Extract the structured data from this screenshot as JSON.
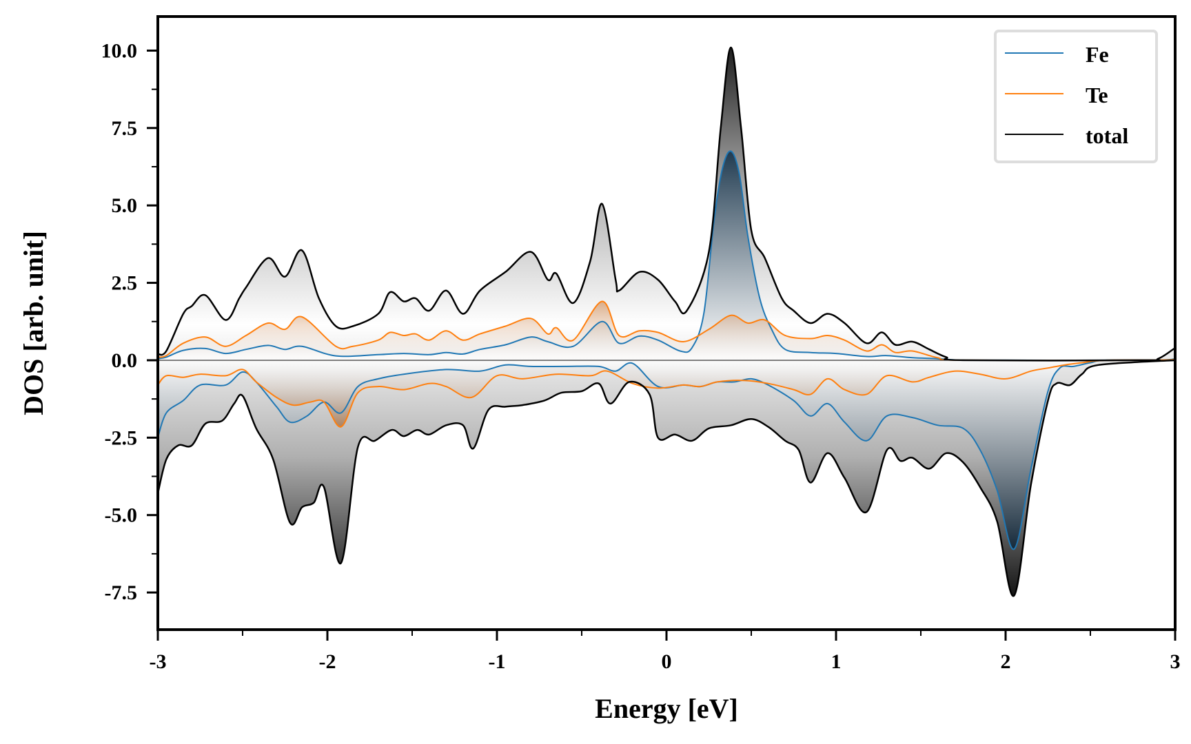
{
  "chart_data": {
    "type": "area",
    "title": "",
    "xlabel": "Energy [eV]",
    "ylabel": "DOS [arb. unit]",
    "xlim": [
      -3,
      3
    ],
    "ylim": [
      -8.7,
      11.1
    ],
    "xticks": [
      -3,
      -2,
      -1,
      0,
      1,
      2,
      3
    ],
    "xtick_labels": [
      "-3",
      "-2",
      "-1",
      "0",
      "1",
      "2",
      "3"
    ],
    "xminor_ticks": [
      -2.5,
      -1.5,
      -0.5,
      0.5,
      1.5,
      2.5
    ],
    "yticks": [
      -7.5,
      -5.0,
      -2.5,
      0.0,
      2.5,
      5.0,
      7.5,
      10.0
    ],
    "ytick_labels": [
      "-7.5",
      "-5.0",
      "-2.5",
      "0.0",
      "2.5",
      "5.0",
      "7.5",
      "10.0"
    ],
    "yminor_ticks": [
      -6.25,
      -3.75,
      -1.25,
      1.25,
      3.75,
      6.25,
      8.75
    ],
    "grid": false,
    "legend": {
      "position": "top-right",
      "entries": [
        "Fe",
        "Te",
        "total"
      ]
    },
    "series": [
      {
        "name": "Fe",
        "color": "#1f77b4",
        "spin_up": {
          "x": [
            -3.0,
            -2.95,
            -2.85,
            -2.72,
            -2.6,
            -2.48,
            -2.35,
            -2.25,
            -2.15,
            -1.95,
            -1.7,
            -1.55,
            -1.4,
            -1.3,
            -1.2,
            -1.1,
            -0.95,
            -0.8,
            -0.7,
            -0.55,
            -0.38,
            -0.28,
            -0.16,
            -0.05,
            0.08,
            0.15,
            0.22,
            0.28,
            0.33,
            0.38,
            0.43,
            0.48,
            0.55,
            0.62,
            0.7,
            0.85,
            1.0,
            1.18,
            1.3,
            1.45,
            1.6,
            1.75,
            2.0,
            2.85,
            3.0
          ],
          "y": [
            0.05,
            0.1,
            0.32,
            0.38,
            0.22,
            0.35,
            0.48,
            0.35,
            0.45,
            0.14,
            0.18,
            0.22,
            0.18,
            0.25,
            0.2,
            0.35,
            0.5,
            0.75,
            0.6,
            0.45,
            1.25,
            0.55,
            0.78,
            0.65,
            0.3,
            0.4,
            1.5,
            4.5,
            6.2,
            6.75,
            6.0,
            4.0,
            2.0,
            1.0,
            0.35,
            0.25,
            0.22,
            0.12,
            0.15,
            0.08,
            0.05,
            0.0,
            0.0,
            0.0,
            0.05
          ]
        },
        "spin_down": {
          "x": [
            -3.0,
            -2.95,
            -2.85,
            -2.75,
            -2.6,
            -2.5,
            -2.42,
            -2.3,
            -2.22,
            -2.12,
            -2.02,
            -1.92,
            -1.82,
            -1.7,
            -1.55,
            -1.3,
            -1.1,
            -0.95,
            -0.8,
            -0.6,
            -0.4,
            -0.3,
            -0.2,
            -0.05,
            0.1,
            0.2,
            0.3,
            0.4,
            0.5,
            0.6,
            0.75,
            0.85,
            0.95,
            1.05,
            1.18,
            1.3,
            1.45,
            1.6,
            1.75,
            1.85,
            1.95,
            2.05,
            2.15,
            2.25,
            2.32,
            2.4,
            2.5,
            2.6,
            3.0
          ],
          "y": [
            -2.5,
            -1.7,
            -1.3,
            -0.8,
            -0.8,
            -0.38,
            -0.7,
            -1.5,
            -2.0,
            -1.8,
            -1.35,
            -1.7,
            -0.85,
            -0.6,
            -0.45,
            -0.3,
            -0.35,
            -0.15,
            -0.2,
            -0.2,
            -0.2,
            -0.35,
            -0.1,
            -0.85,
            -0.8,
            -0.85,
            -0.7,
            -0.7,
            -0.6,
            -0.8,
            -1.3,
            -1.8,
            -1.4,
            -2.0,
            -2.6,
            -1.8,
            -1.85,
            -2.1,
            -2.2,
            -2.9,
            -4.2,
            -6.1,
            -3.5,
            -1.0,
            -0.25,
            -0.2,
            -0.08,
            0.0,
            0.0
          ]
        }
      },
      {
        "name": "Te",
        "color": "#ff7f0e",
        "spin_up": {
          "x": [
            -3.0,
            -2.95,
            -2.85,
            -2.72,
            -2.6,
            -2.48,
            -2.35,
            -2.25,
            -2.15,
            -1.95,
            -1.85,
            -1.7,
            -1.63,
            -1.55,
            -1.48,
            -1.4,
            -1.3,
            -1.2,
            -1.1,
            -0.95,
            -0.8,
            -0.7,
            -0.65,
            -0.55,
            -0.38,
            -0.28,
            -0.16,
            -0.05,
            0.1,
            0.25,
            0.38,
            0.48,
            0.58,
            0.7,
            0.85,
            0.95,
            1.05,
            1.18,
            1.27,
            1.35,
            1.45,
            1.6,
            1.75,
            2.85,
            3.0
          ],
          "y": [
            0.1,
            0.15,
            0.55,
            0.75,
            0.45,
            0.8,
            1.2,
            1.0,
            1.4,
            0.45,
            0.45,
            0.65,
            0.9,
            0.8,
            0.85,
            0.65,
            0.95,
            0.65,
            0.85,
            1.1,
            1.35,
            0.85,
            1.05,
            0.65,
            1.9,
            0.8,
            0.95,
            0.9,
            0.6,
            1.0,
            1.45,
            1.2,
            1.3,
            0.8,
            0.7,
            0.8,
            0.65,
            0.3,
            0.5,
            0.25,
            0.3,
            0.08,
            0.0,
            0.0,
            0.05
          ]
        },
        "spin_down": {
          "x": [
            -3.0,
            -2.95,
            -2.85,
            -2.75,
            -2.6,
            -2.5,
            -2.42,
            -2.3,
            -2.2,
            -2.1,
            -2.02,
            -1.92,
            -1.82,
            -1.7,
            -1.55,
            -1.4,
            -1.3,
            -1.15,
            -1.0,
            -0.85,
            -0.65,
            -0.45,
            -0.35,
            -0.2,
            -0.05,
            0.1,
            0.2,
            0.3,
            0.45,
            0.6,
            0.75,
            0.85,
            0.95,
            1.05,
            1.18,
            1.3,
            1.45,
            1.55,
            1.7,
            1.85,
            2.0,
            2.15,
            2.25,
            2.35,
            2.45,
            2.6,
            3.0
          ],
          "y": [
            -0.8,
            -0.5,
            -0.55,
            -0.45,
            -0.5,
            -0.3,
            -0.7,
            -1.2,
            -1.45,
            -1.35,
            -1.35,
            -2.15,
            -1.05,
            -0.85,
            -0.95,
            -0.75,
            -0.85,
            -1.2,
            -0.5,
            -0.6,
            -0.45,
            -0.5,
            -0.35,
            -0.75,
            -0.9,
            -0.8,
            -0.85,
            -0.7,
            -0.65,
            -0.75,
            -0.95,
            -1.1,
            -0.6,
            -0.95,
            -1.1,
            -0.5,
            -0.7,
            -0.55,
            -0.35,
            -0.45,
            -0.6,
            -0.35,
            -0.25,
            -0.15,
            -0.08,
            0.0,
            0.0
          ]
        }
      },
      {
        "name": "total",
        "color": "#000000",
        "spin_up": {
          "x": [
            -3.0,
            -2.95,
            -2.85,
            -2.8,
            -2.72,
            -2.6,
            -2.52,
            -2.48,
            -2.35,
            -2.25,
            -2.15,
            -2.05,
            -1.95,
            -1.85,
            -1.7,
            -1.63,
            -1.55,
            -1.48,
            -1.4,
            -1.3,
            -1.2,
            -1.1,
            -0.95,
            -0.8,
            -0.7,
            -0.65,
            -0.55,
            -0.45,
            -0.38,
            -0.3,
            -0.28,
            -0.16,
            -0.05,
            0.05,
            0.12,
            0.25,
            0.32,
            0.38,
            0.44,
            0.5,
            0.58,
            0.68,
            0.75,
            0.85,
            0.95,
            1.05,
            1.18,
            1.27,
            1.35,
            1.45,
            1.55,
            1.65,
            1.75,
            2.8,
            2.9,
            3.0
          ],
          "y": [
            0.2,
            0.3,
            1.5,
            1.75,
            2.1,
            1.3,
            2.0,
            2.35,
            3.3,
            2.7,
            3.55,
            2.0,
            1.1,
            1.1,
            1.5,
            2.2,
            1.9,
            2.0,
            1.6,
            2.25,
            1.5,
            2.25,
            2.85,
            3.5,
            2.6,
            2.8,
            1.85,
            3.2,
            5.05,
            2.6,
            2.25,
            2.85,
            2.6,
            1.9,
            1.6,
            3.5,
            7.5,
            10.1,
            7.5,
            4.2,
            3.3,
            2.0,
            1.6,
            1.2,
            1.5,
            1.2,
            0.55,
            0.9,
            0.5,
            0.6,
            0.35,
            0.1,
            0.0,
            0.0,
            0.05,
            0.4
          ]
        },
        "spin_down": {
          "x": [
            -3.0,
            -2.95,
            -2.88,
            -2.8,
            -2.72,
            -2.62,
            -2.55,
            -2.5,
            -2.42,
            -2.32,
            -2.22,
            -2.15,
            -2.08,
            -2.02,
            -1.92,
            -1.82,
            -1.72,
            -1.62,
            -1.55,
            -1.47,
            -1.4,
            -1.3,
            -1.2,
            -1.14,
            -1.05,
            -0.95,
            -0.85,
            -0.72,
            -0.62,
            -0.5,
            -0.4,
            -0.33,
            -0.22,
            -0.1,
            -0.05,
            0.05,
            0.15,
            0.25,
            0.38,
            0.5,
            0.6,
            0.7,
            0.78,
            0.85,
            0.95,
            1.05,
            1.18,
            1.3,
            1.38,
            1.45,
            1.55,
            1.65,
            1.75,
            1.85,
            1.95,
            2.05,
            2.15,
            2.25,
            2.3,
            2.38,
            2.45,
            2.55,
            3.0
          ],
          "y": [
            -4.3,
            -3.2,
            -2.75,
            -2.75,
            -2.05,
            -1.95,
            -1.4,
            -1.15,
            -2.2,
            -3.2,
            -5.25,
            -4.75,
            -4.6,
            -4.1,
            -6.55,
            -2.8,
            -2.6,
            -2.25,
            -2.45,
            -2.25,
            -2.4,
            -2.1,
            -2.1,
            -2.85,
            -1.6,
            -1.5,
            -1.45,
            -1.3,
            -1.05,
            -1.0,
            -0.75,
            -1.4,
            -0.7,
            -1.1,
            -2.5,
            -2.4,
            -2.6,
            -2.2,
            -2.1,
            -1.9,
            -2.15,
            -2.6,
            -2.9,
            -3.95,
            -3.0,
            -3.8,
            -4.9,
            -2.9,
            -3.25,
            -3.15,
            -3.5,
            -3.0,
            -3.3,
            -4.1,
            -5.2,
            -7.6,
            -4.0,
            -1.3,
            -0.75,
            -0.8,
            -0.45,
            -0.15,
            0.0
          ]
        }
      }
    ]
  }
}
